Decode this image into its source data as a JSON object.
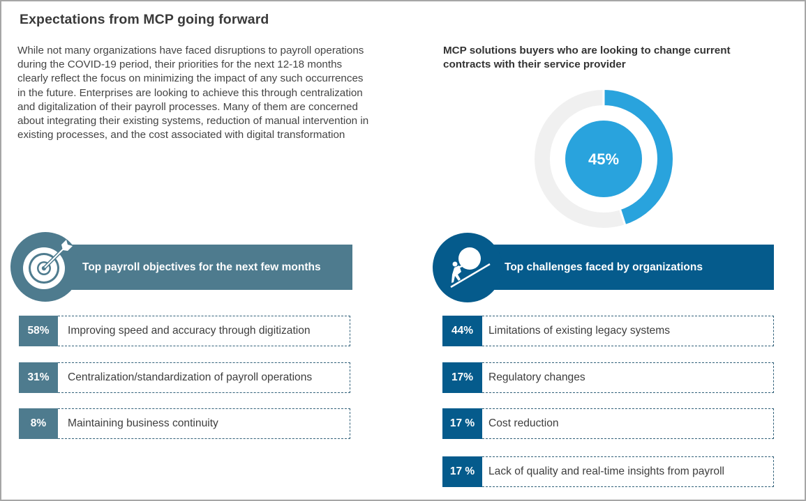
{
  "header": {
    "title": "Expectations from MCP going forward"
  },
  "intro": {
    "text": "While not many organizations have faced disruptions to payroll operations during the COVID-19 period, their priorities for the next 12-18 months clearly reflect the focus on minimizing the impact of any such occurrences in the future. Enterprises are looking to achieve this through centralization and digitalization of their payroll processes. Many of them are concerned about integrating their existing systems, reduction of manual intervention in existing processes, and the cost associated with digital transformation"
  },
  "donut": {
    "title": "MCP solutions buyers who are looking to change current contracts with their service provider",
    "value_percent": 45,
    "label": "45%",
    "colors": {
      "fill": "#29a3dd",
      "track": "#f0f0f0",
      "label": "#ffffff"
    }
  },
  "objectives": {
    "icon": "target-arrow-icon",
    "heading": "Top payroll objectives for the next few months",
    "color": "#4e7b8e",
    "items": [
      {
        "pct": "58%",
        "label": "Improving speed and accuracy through digitization"
      },
      {
        "pct": "31%",
        "label": "Centralization/standardization of payroll operations"
      },
      {
        "pct": "8%",
        "label": "Maintaining business continuity"
      }
    ]
  },
  "challenges": {
    "icon": "person-pushing-boulder-icon",
    "heading": "Top challenges faced by organizations",
    "color": "#055b8c",
    "items": [
      {
        "pct": "44%",
        "label": "Limitations of existing legacy systems"
      },
      {
        "pct": "17%",
        "label": "Regulatory changes"
      },
      {
        "pct": "17 %",
        "label": "Cost reduction"
      },
      {
        "pct": "17 %",
        "label": "Lack of quality and real-time insights from payroll"
      }
    ]
  }
}
